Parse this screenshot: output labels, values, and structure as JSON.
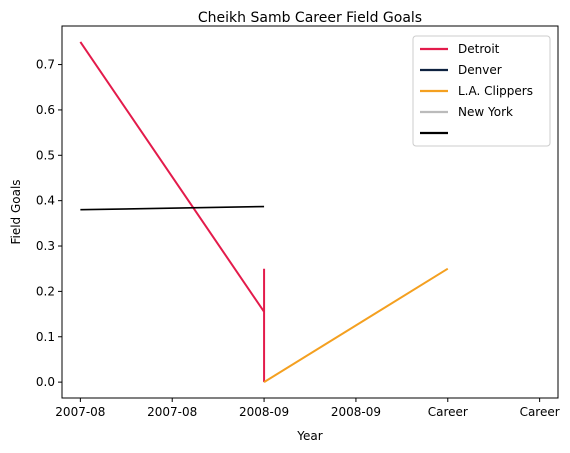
{
  "chart_data": {
    "type": "line",
    "title": "Cheikh Samb Career Field Goals",
    "xlabel": "Year",
    "ylabel": "Field Goals",
    "x_tick_labels": [
      "2007-08",
      "2007-08",
      "2008-09",
      "2008-09",
      "Career",
      "Career"
    ],
    "ylim": [
      -0.035,
      0.785
    ],
    "y_ticks": [
      0.0,
      0.1,
      0.2,
      0.3,
      0.4,
      0.5,
      0.6,
      0.7
    ],
    "y_tick_labels": [
      "0.0",
      "0.1",
      "0.2",
      "0.3",
      "0.4",
      "0.5",
      "0.6",
      "0.7"
    ],
    "grid": false,
    "legend_position": "top-right",
    "legend": [
      "Detroit",
      "Denver",
      "L.A. Clippers",
      "New York",
      ""
    ],
    "series": [
      {
        "name": "Detroit",
        "color": "#e31b4b",
        "points": [
          [
            0,
            0.75
          ],
          [
            2,
            0.155
          ],
          [
            2,
            0.25
          ],
          [
            2,
            0.0
          ]
        ]
      },
      {
        "name": "Denver",
        "color": "#0e2240",
        "points": []
      },
      {
        "name": "L.A. Clippers",
        "color": "#f4a020",
        "points": [
          [
            2,
            0.0
          ],
          [
            4,
            0.25
          ]
        ]
      },
      {
        "name": "New York",
        "color": "#bbbbbb",
        "points": []
      },
      {
        "name": "",
        "color": "#000000",
        "points": [
          [
            0,
            0.38
          ],
          [
            2,
            0.387
          ]
        ]
      }
    ]
  }
}
